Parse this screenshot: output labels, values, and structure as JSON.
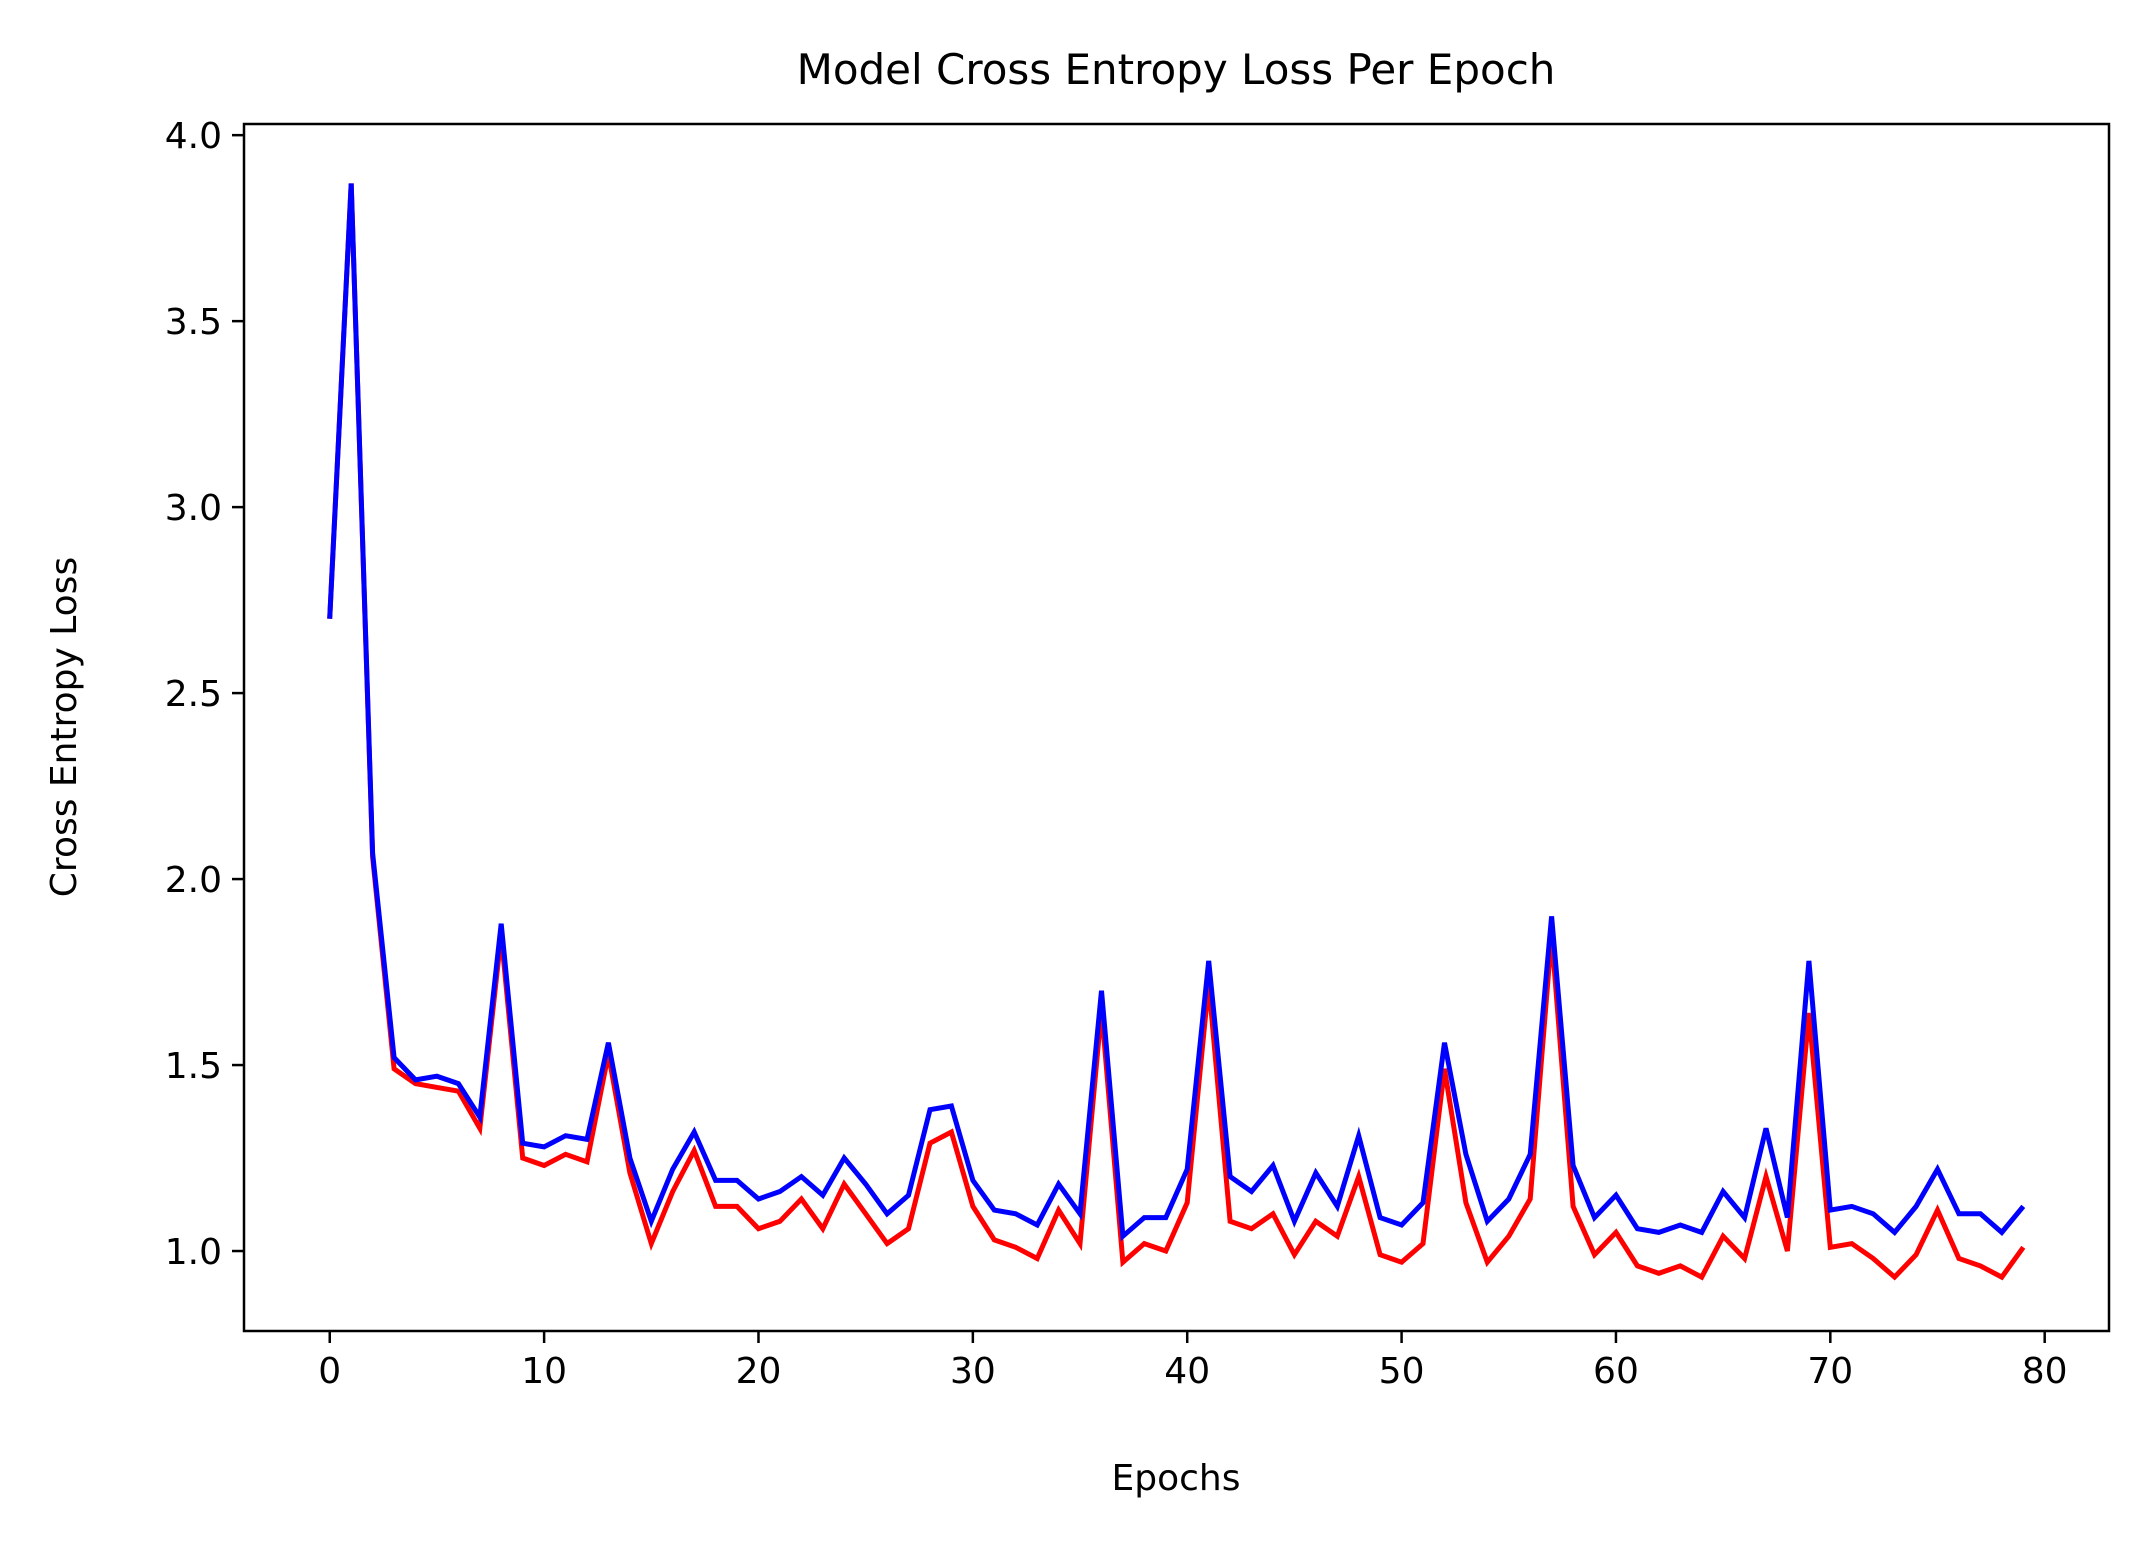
{
  "chart_data": {
    "type": "line",
    "title": "Model Cross Entropy Loss Per Epoch",
    "xlabel": "Epochs",
    "ylabel": "Cross Entropy Loss",
    "xlim": [
      -4,
      83
    ],
    "ylim": [
      0.785,
      4.03
    ],
    "xticks": [
      0,
      10,
      20,
      30,
      40,
      50,
      60,
      70,
      80
    ],
    "yticks": [
      1.0,
      1.5,
      2.0,
      2.5,
      3.0,
      3.5,
      4.0
    ],
    "xtick_labels": [
      "0",
      "10",
      "20",
      "30",
      "40",
      "50",
      "60",
      "70",
      "80"
    ],
    "ytick_labels": [
      "1.0",
      "1.5",
      "2.0",
      "2.5",
      "3.0",
      "3.5",
      "4.0"
    ],
    "grid": false,
    "legend": "none",
    "x": [
      0,
      1,
      2,
      3,
      4,
      5,
      6,
      7,
      8,
      9,
      10,
      11,
      12,
      13,
      14,
      15,
      16,
      17,
      18,
      19,
      20,
      21,
      22,
      23,
      24,
      25,
      26,
      27,
      28,
      29,
      30,
      31,
      32,
      33,
      34,
      35,
      36,
      37,
      38,
      39,
      40,
      41,
      42,
      43,
      44,
      45,
      46,
      47,
      48,
      49,
      50,
      51,
      52,
      53,
      54,
      55,
      56,
      57,
      58,
      59,
      60,
      61,
      62,
      63,
      64,
      65,
      66,
      67,
      68,
      69,
      70,
      71,
      72,
      73,
      74,
      75,
      76,
      77,
      78,
      79
    ],
    "series": [
      {
        "color": "#ff0000",
        "values": [
          2.7,
          3.87,
          2.06,
          1.49,
          1.45,
          1.44,
          1.43,
          1.33,
          1.85,
          1.25,
          1.23,
          1.26,
          1.24,
          1.53,
          1.21,
          1.02,
          1.16,
          1.27,
          1.12,
          1.12,
          1.06,
          1.08,
          1.14,
          1.06,
          1.18,
          1.1,
          1.02,
          1.06,
          1.29,
          1.32,
          1.12,
          1.03,
          1.01,
          0.98,
          1.11,
          1.02,
          1.65,
          0.97,
          1.02,
          1.0,
          1.13,
          1.72,
          1.08,
          1.06,
          1.1,
          0.99,
          1.08,
          1.04,
          1.2,
          0.99,
          0.97,
          1.02,
          1.49,
          1.13,
          0.97,
          1.04,
          1.14,
          1.85,
          1.12,
          0.99,
          1.05,
          0.96,
          0.94,
          0.96,
          0.93,
          1.04,
          0.98,
          1.2,
          1.0,
          1.64,
          1.01,
          1.02,
          0.98,
          0.93,
          0.99,
          1.11,
          0.98,
          0.96,
          0.93,
          1.01
        ]
      },
      {
        "color": "#0000ff",
        "values": [
          2.7,
          3.87,
          2.07,
          1.52,
          1.46,
          1.47,
          1.45,
          1.36,
          1.88,
          1.29,
          1.28,
          1.31,
          1.3,
          1.56,
          1.25,
          1.08,
          1.22,
          1.32,
          1.19,
          1.19,
          1.14,
          1.16,
          1.2,
          1.15,
          1.25,
          1.18,
          1.1,
          1.15,
          1.38,
          1.39,
          1.19,
          1.11,
          1.1,
          1.07,
          1.18,
          1.1,
          1.7,
          1.04,
          1.09,
          1.09,
          1.22,
          1.78,
          1.2,
          1.16,
          1.23,
          1.08,
          1.21,
          1.12,
          1.31,
          1.09,
          1.07,
          1.13,
          1.56,
          1.26,
          1.08,
          1.14,
          1.26,
          1.9,
          1.23,
          1.09,
          1.15,
          1.06,
          1.05,
          1.07,
          1.05,
          1.16,
          1.09,
          1.33,
          1.09,
          1.78,
          1.11,
          1.12,
          1.1,
          1.05,
          1.12,
          1.22,
          1.1,
          1.1,
          1.05,
          1.12
        ]
      }
    ]
  }
}
